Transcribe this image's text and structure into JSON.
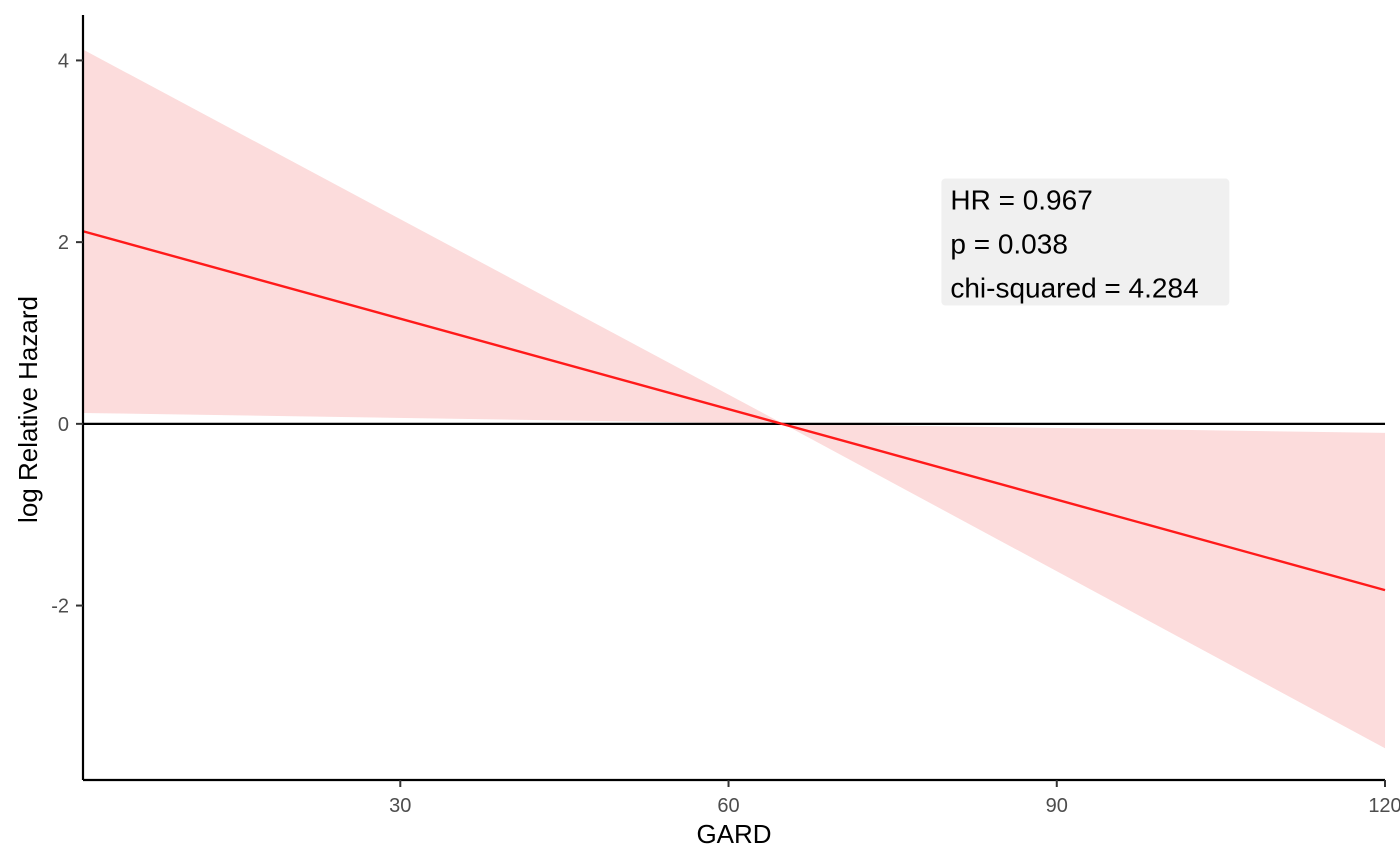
{
  "chart_data": {
    "type": "line",
    "xlabel": "GARD",
    "ylabel": "log Relative Hazard",
    "xlim": [
      1,
      120
    ],
    "ylim": [
      -3.92,
      4.5
    ],
    "x_ticks": [
      30,
      60,
      90,
      120
    ],
    "y_ticks": [
      -2,
      0,
      2,
      4
    ],
    "x_tick_labels": [
      "30",
      "60",
      "90",
      "120"
    ],
    "y_tick_labels": [
      "-2",
      "0",
      "2",
      "4"
    ],
    "series": [
      {
        "x": [
          1,
          120
        ],
        "y": [
          2.12,
          -1.83
        ],
        "color": "#ff1a1a"
      }
    ],
    "ribbon": {
      "x": [
        1,
        65,
        120
      ],
      "lower": [
        0.12,
        0.0,
        -3.57
      ],
      "upper": [
        4.12,
        0.0,
        -0.1
      ],
      "color": "#fcdcdc"
    },
    "reference_line": {
      "y": 0,
      "color": "#000000"
    },
    "annotation": {
      "lines": [
        "HR = 0.967",
        "p = 0.038",
        "chi-squared = 4.284"
      ],
      "background": "#f0f0f0",
      "x": 80,
      "y_top": 2.7
    }
  }
}
